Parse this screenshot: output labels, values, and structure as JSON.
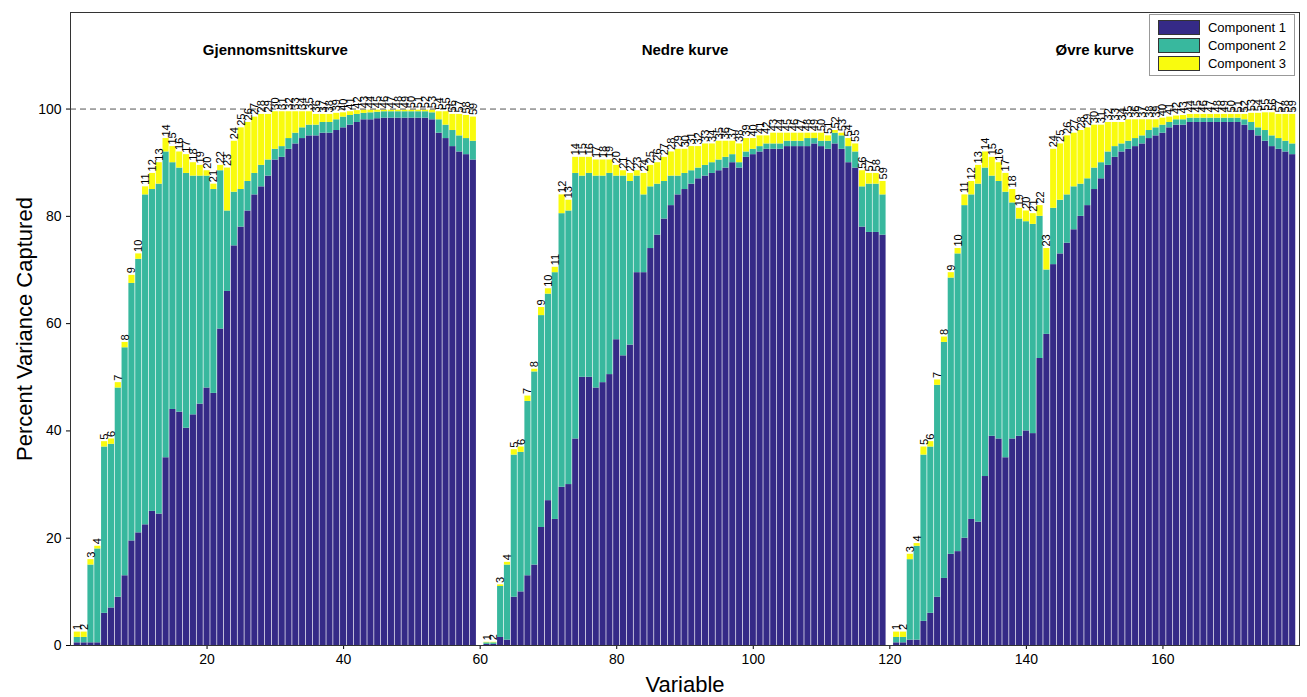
{
  "chart_data": {
    "type": "bar",
    "stacked": true,
    "x_label": "Variable",
    "y_label": "Percent Variance Captured",
    "xlim": [
      0,
      180
    ],
    "xticks": [
      20,
      40,
      60,
      80,
      100,
      120,
      140,
      160
    ],
    "ylim": [
      0,
      118
    ],
    "yticks": [
      0,
      20,
      40,
      60,
      80,
      100
    ],
    "grid": false,
    "legend": "top-right",
    "reference_line": 100,
    "annotations": [
      {
        "text": "Gjennomsnittskurve",
        "x": 30,
        "y": 111
      },
      {
        "text": "Nedre kurve",
        "x": 90,
        "y": 111
      },
      {
        "text": "Øvre kurve",
        "x": 150,
        "y": 111
      }
    ],
    "x": [
      1,
      2,
      3,
      4,
      5,
      6,
      7,
      8,
      9,
      10,
      11,
      12,
      13,
      14,
      15,
      16,
      17,
      18,
      19,
      20,
      21,
      22,
      23,
      24,
      25,
      26,
      27,
      28,
      29,
      30,
      31,
      32,
      33,
      34,
      35,
      36,
      37,
      38,
      39,
      40,
      41,
      42,
      43,
      44,
      45,
      46,
      47,
      48,
      49,
      50,
      51,
      52,
      53,
      54,
      55,
      56,
      57,
      58,
      59,
      61,
      62,
      63,
      64,
      65,
      66,
      67,
      68,
      69,
      70,
      71,
      72,
      73,
      74,
      75,
      76,
      77,
      78,
      79,
      80,
      81,
      82,
      83,
      84,
      85,
      86,
      87,
      88,
      89,
      90,
      91,
      92,
      93,
      94,
      95,
      96,
      97,
      98,
      99,
      100,
      101,
      102,
      103,
      104,
      105,
      106,
      107,
      108,
      109,
      110,
      111,
      112,
      113,
      114,
      115,
      116,
      117,
      118,
      119,
      121,
      122,
      123,
      124,
      125,
      126,
      127,
      128,
      129,
      130,
      131,
      132,
      133,
      134,
      135,
      136,
      137,
      138,
      139,
      140,
      141,
      142,
      143,
      144,
      145,
      146,
      147,
      148,
      149,
      150,
      151,
      152,
      153,
      154,
      155,
      156,
      157,
      158,
      159,
      160,
      161,
      162,
      163,
      164,
      165,
      166,
      167,
      168,
      169,
      170,
      171,
      172,
      173,
      174,
      175,
      176,
      177,
      178,
      179
    ],
    "bar_labels": [
      1,
      2,
      3,
      4,
      5,
      6,
      7,
      8,
      9,
      10,
      11,
      12,
      13,
      14,
      15,
      16,
      17,
      18,
      19,
      20,
      21,
      22,
      23,
      24,
      25,
      26,
      27,
      28,
      29,
      30,
      31,
      32,
      33,
      34,
      35,
      36,
      37,
      38,
      39,
      40,
      41,
      42,
      43,
      44,
      45,
      46,
      47,
      48,
      49,
      50,
      51,
      52,
      53,
      54,
      55,
      56,
      57,
      58,
      59,
      1,
      2,
      3,
      4,
      5,
      6,
      7,
      8,
      9,
      10,
      11,
      12,
      13,
      14,
      15,
      16,
      17,
      18,
      19,
      20,
      21,
      22,
      23,
      24,
      25,
      26,
      27,
      28,
      29,
      30,
      31,
      32,
      33,
      34,
      35,
      36,
      37,
      38,
      39,
      40,
      41,
      42,
      43,
      44,
      45,
      46,
      47,
      48,
      49,
      50,
      51,
      52,
      53,
      54,
      55,
      56,
      57,
      58,
      59,
      1,
      2,
      3,
      4,
      5,
      6,
      7,
      8,
      9,
      10,
      11,
      12,
      13,
      14,
      15,
      16,
      17,
      18,
      19,
      20,
      21,
      22,
      23,
      24,
      25,
      26,
      27,
      28,
      29,
      30,
      31,
      32,
      33,
      34,
      35,
      36,
      37,
      38,
      39,
      40,
      41,
      42,
      43,
      44,
      45,
      46,
      47,
      48,
      49,
      50,
      51,
      52,
      53,
      54,
      55,
      56,
      57,
      58,
      59
    ],
    "series": [
      {
        "name": "Component 1",
        "color": "#352a87",
        "values": [
          0.5,
          0.5,
          0.5,
          0.5,
          6,
          7,
          9,
          13,
          19.5,
          21,
          22.5,
          25,
          24.5,
          35,
          44,
          43.5,
          40.5,
          43,
          45,
          48,
          47,
          59,
          66,
          74.5,
          78,
          81,
          84,
          85.5,
          87.5,
          90.5,
          91,
          92.5,
          93.5,
          94.5,
          95,
          95,
          95.5,
          95.5,
          96,
          96.5,
          97,
          97.5,
          98,
          98,
          98.2,
          98.3,
          98.3,
          98.3,
          98.3,
          98.3,
          98.3,
          98.3,
          98,
          95.5,
          94.5,
          93,
          92,
          91.5,
          90.5,
          0.2,
          0.2,
          1.5,
          1,
          9,
          10,
          13,
          15,
          22,
          27,
          23.5,
          29.5,
          30,
          38.5,
          50,
          50,
          48,
          49,
          50.5,
          57,
          54,
          56,
          69.5,
          69.5,
          74,
          76.5,
          79.5,
          82,
          84,
          85,
          86,
          87,
          87.5,
          88,
          88.5,
          89,
          90,
          89,
          91,
          91.5,
          92,
          92.5,
          92.5,
          92.5,
          93,
          93,
          93,
          93,
          93.5,
          93,
          92.5,
          93.5,
          92.5,
          90,
          89,
          78,
          77,
          77,
          76.5,
          0.5,
          0.5,
          1,
          1,
          4.5,
          6,
          9,
          12.5,
          17,
          17.5,
          20,
          23.5,
          23,
          31.5,
          39,
          38.5,
          35,
          38.5,
          39,
          40,
          39.5,
          53.5,
          58,
          71,
          73,
          75,
          77.5,
          80,
          82,
          85,
          87,
          89.5,
          91,
          92,
          92.5,
          93,
          93.5,
          94.5,
          95,
          95.5,
          96.5,
          97,
          97,
          97.5,
          97.5,
          97.5,
          97.5,
          97.5,
          97.5,
          97.5,
          97.5,
          97,
          96,
          95,
          94,
          93,
          92.5,
          92,
          91.5
        ]
      },
      {
        "name": "Component 2",
        "color": "#38b89e",
        "values": [
          1,
          1,
          14.5,
          17.5,
          31,
          30.5,
          39,
          42.5,
          48,
          51,
          61.5,
          60,
          61.5,
          57,
          46,
          45.5,
          47.5,
          44.5,
          42.5,
          39.5,
          38,
          29.5,
          15,
          10,
          7,
          5.5,
          4,
          4,
          3,
          2,
          2,
          2,
          2,
          2,
          2,
          2,
          2,
          2,
          2,
          2,
          1.8,
          1.5,
          1.2,
          1.3,
          1.2,
          1.2,
          1.2,
          1.2,
          1.2,
          1.2,
          1.2,
          1.2,
          1.3,
          2.5,
          2.5,
          3,
          3,
          3,
          3.5,
          0.3,
          0.3,
          9.5,
          14,
          26.5,
          26,
          32.5,
          36,
          39.5,
          38.5,
          46,
          51,
          51,
          49.5,
          37.5,
          38,
          39.5,
          38.5,
          37.5,
          30.5,
          33.5,
          30.5,
          18,
          14.5,
          11.5,
          9.5,
          7,
          5.5,
          3.5,
          3,
          2.5,
          2,
          2,
          2,
          2,
          2,
          1.5,
          1,
          1,
          1,
          1,
          1,
          1,
          1,
          1,
          1,
          1,
          1.5,
          1,
          1,
          1.5,
          2,
          2.5,
          3,
          3,
          7.5,
          9,
          9,
          7.5,
          1,
          1,
          15,
          17.5,
          31,
          31,
          39.5,
          44,
          51.5,
          55.5,
          62,
          60.5,
          63,
          57.5,
          48.5,
          48,
          49.5,
          44,
          40.5,
          39,
          39,
          26.5,
          12,
          10.5,
          10,
          9,
          8,
          6,
          5,
          4,
          3,
          2.5,
          2,
          1.5,
          1.5,
          1.5,
          1.5,
          1.5,
          1.5,
          1.5,
          1,
          1,
          1,
          0.8,
          0.8,
          0.8,
          0.8,
          0.8,
          0.8,
          0.8,
          0.8,
          1,
          1.5,
          1.5,
          2,
          2,
          2,
          2,
          2
        ]
      },
      {
        "name": "Component 3",
        "color": "#f9fb0e",
        "values": [
          1,
          1,
          1,
          0.5,
          1,
          1,
          1,
          1,
          1.5,
          1,
          1.5,
          3,
          4,
          2.5,
          3,
          3,
          3.5,
          2.5,
          2,
          1,
          1,
          1,
          8,
          9.5,
          11.5,
          11,
          10.5,
          9.5,
          8.5,
          7,
          6.5,
          5,
          4,
          3,
          2.5,
          2,
          1.5,
          1.5,
          1.2,
          0.8,
          0.7,
          0.7,
          0.6,
          0.5,
          0.4,
          0.3,
          0.3,
          0.3,
          0.3,
          0.3,
          0.3,
          0.3,
          0.5,
          1.5,
          2.5,
          3,
          4,
          4.3,
          4.5,
          0.1,
          0.1,
          0.3,
          0.5,
          1,
          1,
          1,
          0.5,
          1.5,
          1,
          1,
          3.5,
          2,
          3,
          3.5,
          3,
          3,
          3,
          2.5,
          2,
          1,
          1.5,
          1,
          4,
          4,
          4,
          4.5,
          4.5,
          5,
          4.5,
          4.5,
          4,
          4,
          3.5,
          3.5,
          3,
          2.5,
          3.5,
          2.5,
          2,
          2,
          1.5,
          2,
          2,
          1.5,
          1.5,
          1.5,
          1,
          1,
          1.5,
          1,
          0.5,
          0.5,
          1.5,
          1.5,
          3,
          2,
          2,
          2.5,
          1,
          1,
          1,
          0.5,
          1.5,
          1,
          1,
          1,
          1,
          1,
          2,
          2.5,
          3.5,
          3,
          3.5,
          3.5,
          3.5,
          2.5,
          2,
          2,
          2,
          2,
          4,
          11,
          10.5,
          11,
          10,
          10,
          9.5,
          8,
          7,
          5.5,
          4.5,
          4,
          4,
          3.5,
          3,
          2,
          1.5,
          1.3,
          1,
          0.7,
          0.8,
          0.7,
          0.7,
          0.7,
          0.7,
          0.7,
          0.7,
          0.7,
          0.7,
          1,
          1.7,
          2.7,
          3.3,
          4.3,
          4.5,
          5,
          5.5
        ]
      }
    ]
  }
}
